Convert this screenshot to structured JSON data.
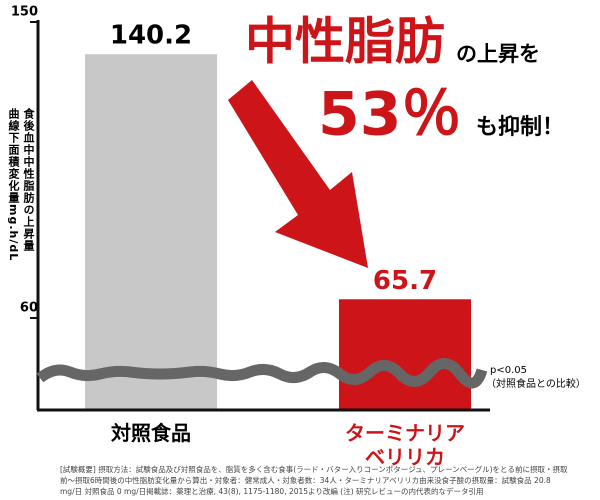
{
  "chart_data": {
    "type": "bar",
    "ylabel": [
      "食後血中中性脂肪の上昇量",
      "曲線下面積変化量mg.h/dL"
    ],
    "categories": [
      "対照食品",
      "ターミナリア\nベリリカ"
    ],
    "values": [
      140.2,
      65.7
    ],
    "colors": [
      "#c8c8c8",
      "#cc1419"
    ],
    "ylim": [
      60,
      150
    ],
    "yticks": [
      60,
      150
    ],
    "annotation": {
      "highlight": "中性脂肪",
      "text1": "の上昇を",
      "percent": "53％",
      "text2": "も抑制！"
    },
    "significance": [
      "p<0.05",
      "（対照食品との比較）"
    ],
    "footnote": [
      "[試験概要] 摂取方法：試験食品及び対照食品を、脂質を多く含む食事(ラード・バター入りコーンポタージュ、プレーンベーグル)をとる前に摂取・摂取",
      "前～摂取6時間後の中性脂肪変化量から算出・対象者：健常成人・対象者数：34人・ターミナリアベリリカ由来没食子酸の摂取量：試験食品 20.8",
      "mg/日 対照食品 0 mg/日掲載誌：薬理と治療, 43(8), 1175-1180, 2015より改編 (注) 研究レビューの内代表的なデータ引用"
    ]
  }
}
